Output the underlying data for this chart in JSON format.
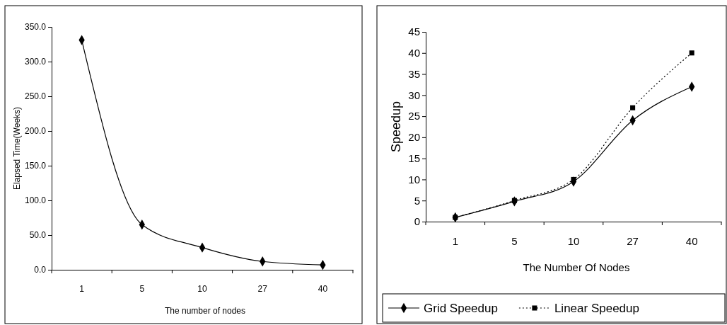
{
  "chart_data": [
    {
      "type": "line",
      "xlabel": "The number of nodes",
      "ylabel": "Elapsed Time(Weeks)",
      "categories": [
        "1",
        "5",
        "10",
        "27",
        "40"
      ],
      "series": [
        {
          "color": "#000000",
          "values": [
            331,
            65,
            32,
            12,
            7
          ],
          "marker": "diamond",
          "line_style": "solid"
        }
      ],
      "ylim": [
        0,
        350
      ],
      "yticks": [
        {
          "value": 0,
          "label": "0.0"
        },
        {
          "value": 50,
          "label": "50.0"
        },
        {
          "value": 100,
          "label": "100.0"
        },
        {
          "value": 150,
          "label": "150.0"
        },
        {
          "value": 200,
          "label": "200.0"
        },
        {
          "value": 250,
          "label": "250.0"
        },
        {
          "value": 300,
          "label": "300.0"
        },
        {
          "value": 350,
          "label": "350.0"
        }
      ],
      "grid": false,
      "legend": false
    },
    {
      "type": "line",
      "xlabel": "The Number Of Nodes",
      "ylabel": "Speedup",
      "categories": [
        "1",
        "5",
        "10",
        "27",
        "40"
      ],
      "series": [
        {
          "name": "Grid Speedup",
          "color": "#000000",
          "values": [
            1,
            4.8,
            9.5,
            24,
            32
          ],
          "marker": "diamond",
          "line_style": "solid"
        },
        {
          "name": "Linear Speedup",
          "color": "#000000",
          "values": [
            1,
            5,
            10,
            27,
            40
          ],
          "marker": "square",
          "line_style": "dotted"
        }
      ],
      "ylim": [
        0,
        45
      ],
      "yticks": [
        0,
        5,
        10,
        15,
        20,
        25,
        30,
        35,
        40,
        45
      ],
      "grid": false,
      "legend": "bottom"
    }
  ]
}
